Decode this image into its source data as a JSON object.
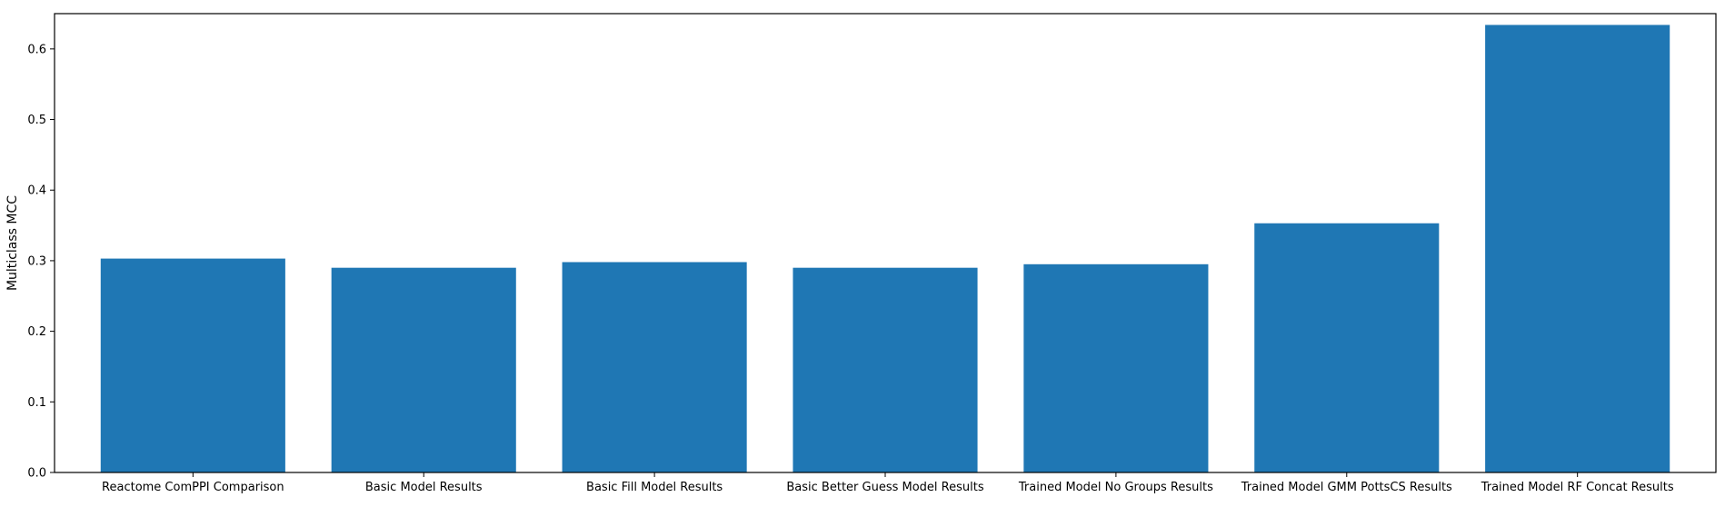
{
  "chart_data": {
    "type": "bar",
    "title": "",
    "xlabel": "",
    "ylabel": "Multiclass MCC",
    "ylim": [
      0,
      0.65
    ],
    "yticks": [
      "0.0",
      "0.1",
      "0.2",
      "0.3",
      "0.4",
      "0.5",
      "0.6"
    ],
    "grid": false,
    "bar_color": "#1f77b4",
    "categories": [
      "Reactome ComPPI Comparison",
      "Basic Model Results",
      "Basic Fill Model Results",
      "Basic Better Guess Model Results",
      "Trained Model No Groups Results",
      "Trained Model GMM PottsCS Results",
      "Trained Model RF Concat Results"
    ],
    "values": [
      0.303,
      0.29,
      0.298,
      0.29,
      0.295,
      0.353,
      0.634
    ]
  }
}
